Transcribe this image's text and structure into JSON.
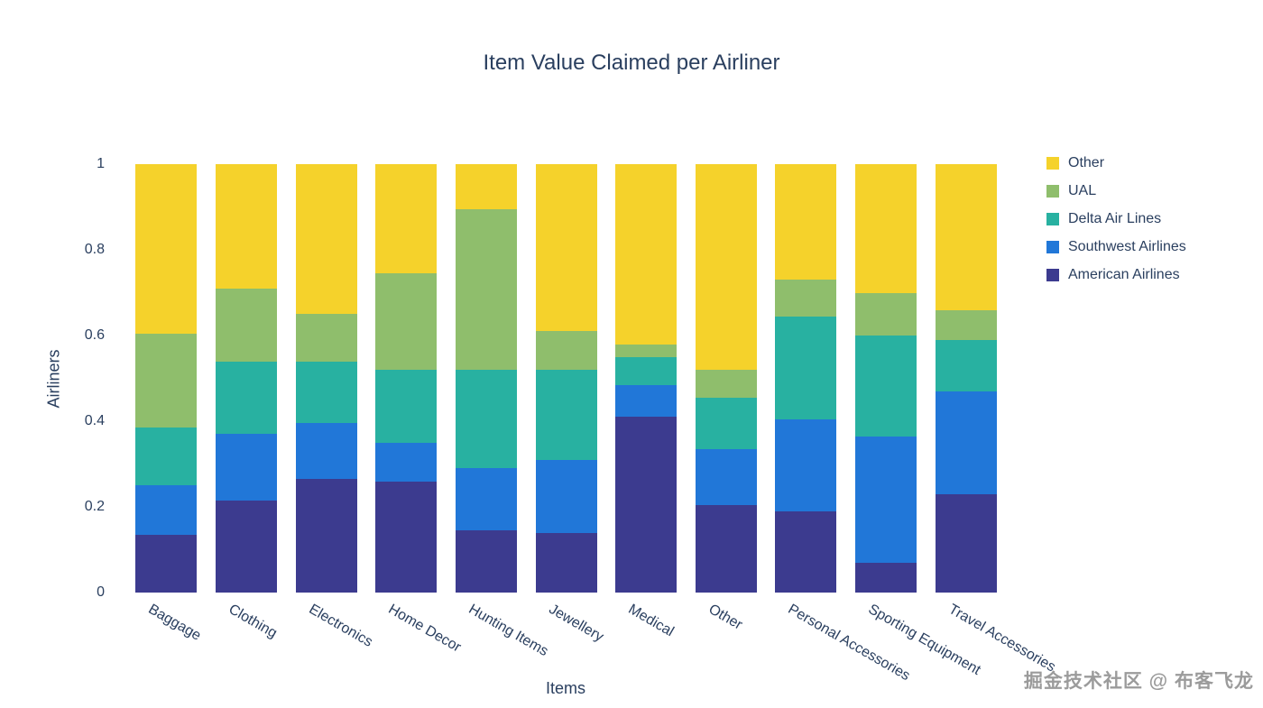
{
  "title": "Item Value Claimed per Airliner",
  "watermark": "掘金技术社区 @ 布客飞龙",
  "axes": {
    "xlabel": "Items",
    "ylabel": "Airliners"
  },
  "colors": {
    "text": "#2a3f5f",
    "background": "#ffffff"
  },
  "chart_data": {
    "type": "bar",
    "stacked": true,
    "normalized": true,
    "title": "Item Value Claimed per Airliner",
    "xlabel": "Items",
    "ylabel": "Airliners",
    "ylim": [
      0,
      1
    ],
    "grid": false,
    "legend_position": "right-top",
    "yticks": [
      0,
      0.2,
      0.4,
      0.6,
      0.8,
      1
    ],
    "ytick_labels": [
      "0",
      "0.2",
      "0.4",
      "0.6",
      "0.8",
      "1"
    ],
    "categories": [
      "Baggage",
      "Clothing",
      "Electronics",
      "Home Decor",
      "Hunting Items",
      "Jewellery",
      "Medical",
      "Other",
      "Personal Accessories",
      "Sporting Equipment",
      "Travel Accessories"
    ],
    "series": [
      {
        "name": "American Airlines",
        "color": "#3c3b8f",
        "values": [
          0.135,
          0.215,
          0.265,
          0.26,
          0.145,
          0.14,
          0.41,
          0.205,
          0.19,
          0.07,
          0.23
        ]
      },
      {
        "name": "Southwest Airlines",
        "color": "#2177d8",
        "values": [
          0.115,
          0.155,
          0.13,
          0.09,
          0.145,
          0.17,
          0.075,
          0.13,
          0.215,
          0.295,
          0.24
        ]
      },
      {
        "name": "Delta Air Lines",
        "color": "#28b1a1",
        "values": [
          0.135,
          0.17,
          0.145,
          0.17,
          0.23,
          0.21,
          0.065,
          0.12,
          0.24,
          0.235,
          0.12
        ]
      },
      {
        "name": "UAL",
        "color": "#8fbe6c",
        "values": [
          0.22,
          0.17,
          0.11,
          0.225,
          0.375,
          0.09,
          0.03,
          0.065,
          0.085,
          0.1,
          0.07
        ]
      },
      {
        "name": "Other",
        "color": "#f5d22b",
        "values": [
          0.395,
          0.29,
          0.35,
          0.255,
          0.105,
          0.39,
          0.42,
          0.48,
          0.27,
          0.3,
          0.34
        ]
      }
    ],
    "legend_order": [
      "Other",
      "UAL",
      "Delta Air Lines",
      "Southwest Airlines",
      "American Airlines"
    ]
  }
}
